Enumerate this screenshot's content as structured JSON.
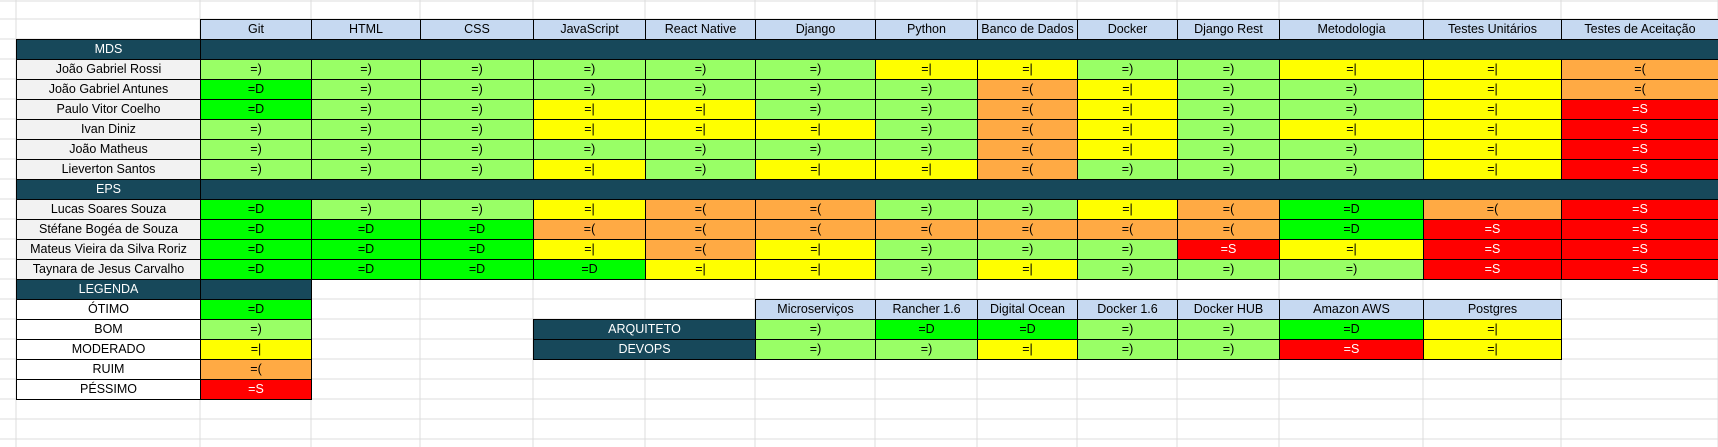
{
  "palette": {
    "otimo": "#00ff00",
    "bom": "#99ff66",
    "moderado": "#ffff00",
    "ruim": "#ffaa44",
    "pessimo": "#ff0000",
    "header": "#c6d9f1",
    "section": "#17485a",
    "row_label": "#f2f2f2"
  },
  "matrix": {
    "columns": [
      "Git",
      "HTML",
      "CSS",
      "JavaScript",
      "React Native",
      "Django",
      "Python",
      "Banco de Dados",
      "Docker",
      "Django Rest",
      "Metodologia",
      "Testes Unitários",
      "Testes de Aceitação"
    ],
    "sections": [
      {
        "label": "MDS",
        "rows": [
          {
            "name": "João Gabriel Rossi",
            "cells": [
              {
                "v": "=)",
                "c": "bom"
              },
              {
                "v": "=)",
                "c": "bom"
              },
              {
                "v": "=)",
                "c": "bom"
              },
              {
                "v": "=)",
                "c": "bom"
              },
              {
                "v": "=)",
                "c": "bom"
              },
              {
                "v": "=)",
                "c": "bom"
              },
              {
                "v": "=|",
                "c": "moderado"
              },
              {
                "v": "=|",
                "c": "moderado"
              },
              {
                "v": "=)",
                "c": "bom"
              },
              {
                "v": "=)",
                "c": "bom"
              },
              {
                "v": "=|",
                "c": "moderado"
              },
              {
                "v": "=|",
                "c": "moderado"
              },
              {
                "v": "=(",
                "c": "ruim"
              }
            ]
          },
          {
            "name": "João Gabriel Antunes",
            "cells": [
              {
                "v": "=D",
                "c": "otimo"
              },
              {
                "v": "=)",
                "c": "bom"
              },
              {
                "v": "=)",
                "c": "bom"
              },
              {
                "v": "=)",
                "c": "bom"
              },
              {
                "v": "=)",
                "c": "bom"
              },
              {
                "v": "=)",
                "c": "bom"
              },
              {
                "v": "=)",
                "c": "bom"
              },
              {
                "v": "=(",
                "c": "ruim"
              },
              {
                "v": "=|",
                "c": "moderado"
              },
              {
                "v": "=)",
                "c": "bom"
              },
              {
                "v": "=)",
                "c": "bom"
              },
              {
                "v": "=|",
                "c": "moderado"
              },
              {
                "v": "=(",
                "c": "ruim"
              }
            ]
          },
          {
            "name": "Paulo Vitor Coelho",
            "cells": [
              {
                "v": "=D",
                "c": "otimo"
              },
              {
                "v": "=)",
                "c": "bom"
              },
              {
                "v": "=)",
                "c": "bom"
              },
              {
                "v": "=|",
                "c": "moderado"
              },
              {
                "v": "=|",
                "c": "moderado"
              },
              {
                "v": "=)",
                "c": "bom"
              },
              {
                "v": "=)",
                "c": "bom"
              },
              {
                "v": "=(",
                "c": "ruim"
              },
              {
                "v": "=|",
                "c": "moderado"
              },
              {
                "v": "=)",
                "c": "bom"
              },
              {
                "v": "=)",
                "c": "bom"
              },
              {
                "v": "=|",
                "c": "moderado"
              },
              {
                "v": "=S",
                "c": "pessimo"
              }
            ]
          },
          {
            "name": "Ivan Diniz",
            "cells": [
              {
                "v": "=)",
                "c": "bom"
              },
              {
                "v": "=)",
                "c": "bom"
              },
              {
                "v": "=)",
                "c": "bom"
              },
              {
                "v": "=|",
                "c": "moderado"
              },
              {
                "v": "=|",
                "c": "moderado"
              },
              {
                "v": "=|",
                "c": "moderado"
              },
              {
                "v": "=)",
                "c": "bom"
              },
              {
                "v": "=(",
                "c": "ruim"
              },
              {
                "v": "=|",
                "c": "moderado"
              },
              {
                "v": "=)",
                "c": "bom"
              },
              {
                "v": "=|",
                "c": "moderado"
              },
              {
                "v": "=|",
                "c": "moderado"
              },
              {
                "v": "=S",
                "c": "pessimo"
              }
            ]
          },
          {
            "name": "João Matheus",
            "cells": [
              {
                "v": "=)",
                "c": "bom"
              },
              {
                "v": "=)",
                "c": "bom"
              },
              {
                "v": "=)",
                "c": "bom"
              },
              {
                "v": "=)",
                "c": "bom"
              },
              {
                "v": "=)",
                "c": "bom"
              },
              {
                "v": "=)",
                "c": "bom"
              },
              {
                "v": "=)",
                "c": "bom"
              },
              {
                "v": "=(",
                "c": "ruim"
              },
              {
                "v": "=|",
                "c": "moderado"
              },
              {
                "v": "=)",
                "c": "bom"
              },
              {
                "v": "=)",
                "c": "bom"
              },
              {
                "v": "=|",
                "c": "moderado"
              },
              {
                "v": "=S",
                "c": "pessimo"
              }
            ]
          },
          {
            "name": "Lieverton Santos",
            "cells": [
              {
                "v": "=)",
                "c": "bom"
              },
              {
                "v": "=)",
                "c": "bom"
              },
              {
                "v": "=)",
                "c": "bom"
              },
              {
                "v": "=|",
                "c": "moderado"
              },
              {
                "v": "=)",
                "c": "bom"
              },
              {
                "v": "=|",
                "c": "moderado"
              },
              {
                "v": "=|",
                "c": "moderado"
              },
              {
                "v": "=(",
                "c": "ruim"
              },
              {
                "v": "=)",
                "c": "bom"
              },
              {
                "v": "=)",
                "c": "bom"
              },
              {
                "v": "=)",
                "c": "bom"
              },
              {
                "v": "=|",
                "c": "moderado"
              },
              {
                "v": "=S",
                "c": "pessimo"
              }
            ]
          }
        ]
      },
      {
        "label": "EPS",
        "rows": [
          {
            "name": "Lucas Soares Souza",
            "cells": [
              {
                "v": "=D",
                "c": "otimo"
              },
              {
                "v": "=)",
                "c": "bom"
              },
              {
                "v": "=)",
                "c": "bom"
              },
              {
                "v": "=|",
                "c": "moderado"
              },
              {
                "v": "=(",
                "c": "ruim"
              },
              {
                "v": "=(",
                "c": "ruim"
              },
              {
                "v": "=)",
                "c": "bom"
              },
              {
                "v": "=)",
                "c": "bom"
              },
              {
                "v": "=|",
                "c": "moderado"
              },
              {
                "v": "=(",
                "c": "ruim"
              },
              {
                "v": "=D",
                "c": "otimo"
              },
              {
                "v": "=(",
                "c": "ruim"
              },
              {
                "v": "=S",
                "c": "pessimo"
              }
            ]
          },
          {
            "name": "Stéfane Bogéa de Souza",
            "cells": [
              {
                "v": "=D",
                "c": "otimo"
              },
              {
                "v": "=D",
                "c": "otimo"
              },
              {
                "v": "=D",
                "c": "otimo"
              },
              {
                "v": "=(",
                "c": "ruim"
              },
              {
                "v": "=(",
                "c": "ruim"
              },
              {
                "v": "=(",
                "c": "ruim"
              },
              {
                "v": "=(",
                "c": "ruim"
              },
              {
                "v": "=(",
                "c": "ruim"
              },
              {
                "v": "=(",
                "c": "ruim"
              },
              {
                "v": "=(",
                "c": "ruim"
              },
              {
                "v": "=D",
                "c": "otimo"
              },
              {
                "v": "=S",
                "c": "pessimo"
              },
              {
                "v": "=S",
                "c": "pessimo"
              }
            ]
          },
          {
            "name": "Mateus Vieira da Silva Roriz",
            "cells": [
              {
                "v": "=D",
                "c": "otimo"
              },
              {
                "v": "=D",
                "c": "otimo"
              },
              {
                "v": "=D",
                "c": "otimo"
              },
              {
                "v": "=|",
                "c": "moderado"
              },
              {
                "v": "=(",
                "c": "ruim"
              },
              {
                "v": "=|",
                "c": "moderado"
              },
              {
                "v": "=)",
                "c": "bom"
              },
              {
                "v": "=)",
                "c": "bom"
              },
              {
                "v": "=)",
                "c": "bom"
              },
              {
                "v": "=S",
                "c": "pessimo"
              },
              {
                "v": "=|",
                "c": "moderado"
              },
              {
                "v": "=S",
                "c": "pessimo"
              },
              {
                "v": "=S",
                "c": "pessimo"
              }
            ]
          },
          {
            "name": "Taynara de Jesus Carvalho",
            "cells": [
              {
                "v": "=D",
                "c": "otimo"
              },
              {
                "v": "=D",
                "c": "otimo"
              },
              {
                "v": "=D",
                "c": "otimo"
              },
              {
                "v": "=D",
                "c": "otimo"
              },
              {
                "v": "=|",
                "c": "moderado"
              },
              {
                "v": "=|",
                "c": "moderado"
              },
              {
                "v": "=)",
                "c": "bom"
              },
              {
                "v": "=|",
                "c": "moderado"
              },
              {
                "v": "=)",
                "c": "bom"
              },
              {
                "v": "=)",
                "c": "bom"
              },
              {
                "v": "=)",
                "c": "bom"
              },
              {
                "v": "=S",
                "c": "pessimo"
              },
              {
                "v": "=S",
                "c": "pessimo"
              }
            ]
          }
        ]
      }
    ]
  },
  "legend": {
    "title": "LEGENDA",
    "items": [
      {
        "label": "ÓTIMO",
        "v": "=D",
        "c": "otimo"
      },
      {
        "label": "BOM",
        "v": "=)",
        "c": "bom"
      },
      {
        "label": "MODERADO",
        "v": "=|",
        "c": "moderado"
      },
      {
        "label": "RUIM",
        "v": "=(",
        "c": "ruim"
      },
      {
        "label": "PÉSSIMO",
        "v": "=S",
        "c": "pessimo"
      }
    ]
  },
  "roles": {
    "columns": [
      "Microserviços",
      "Rancher 1.6",
      "Digital Ocean",
      "Docker 1.6",
      "Docker HUB",
      "Amazon AWS",
      "Postgres"
    ],
    "rows": [
      {
        "name": "ARQUITETO",
        "cells": [
          {
            "v": "=)",
            "c": "bom"
          },
          {
            "v": "=D",
            "c": "otimo"
          },
          {
            "v": "=D",
            "c": "otimo"
          },
          {
            "v": "=)",
            "c": "bom"
          },
          {
            "v": "=)",
            "c": "bom"
          },
          {
            "v": "=D",
            "c": "otimo"
          },
          {
            "v": "=|",
            "c": "moderado"
          }
        ]
      },
      {
        "name": "DEVOPS",
        "cells": [
          {
            "v": "=)",
            "c": "bom"
          },
          {
            "v": "=)",
            "c": "bom"
          },
          {
            "v": "=|",
            "c": "moderado"
          },
          {
            "v": "=)",
            "c": "bom"
          },
          {
            "v": "=)",
            "c": "bom"
          },
          {
            "v": "=S",
            "c": "pessimo"
          },
          {
            "v": "=|",
            "c": "moderado"
          }
        ]
      }
    ]
  }
}
